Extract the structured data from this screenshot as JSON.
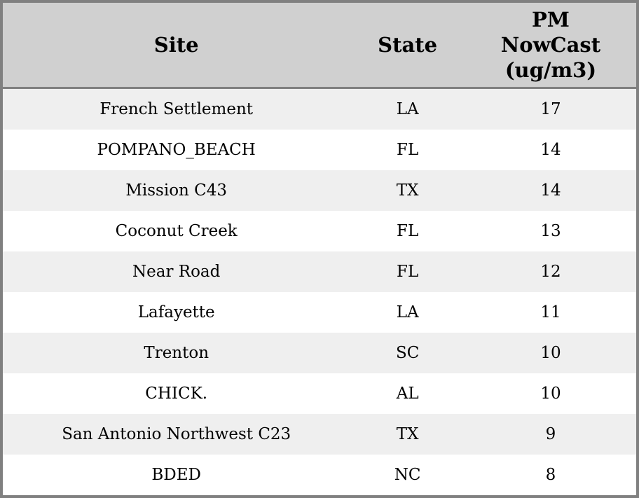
{
  "chart_data": {
    "type": "table",
    "title": "",
    "columns": [
      "Site",
      "State",
      "PM NowCast (ug/m3)"
    ],
    "columns_display": [
      "Site",
      "State",
      "PM\nNowCast\n(ug/m3)"
    ],
    "rows": [
      {
        "site": "French Settlement",
        "state": "LA",
        "pm_nowcast": 17
      },
      {
        "site": "POMPANO_BEACH",
        "state": "FL",
        "pm_nowcast": 14
      },
      {
        "site": "Mission C43",
        "state": "TX",
        "pm_nowcast": 14
      },
      {
        "site": "Coconut Creek",
        "state": "FL",
        "pm_nowcast": 13
      },
      {
        "site": "Near Road",
        "state": "FL",
        "pm_nowcast": 12
      },
      {
        "site": "Lafayette",
        "state": "LA",
        "pm_nowcast": 11
      },
      {
        "site": "Trenton",
        "state": "SC",
        "pm_nowcast": 10
      },
      {
        "site": "CHICK.",
        "state": "AL",
        "pm_nowcast": 10
      },
      {
        "site": "San Antonio Northwest C23",
        "state": "TX",
        "pm_nowcast": 9
      },
      {
        "site": "BDED",
        "state": "NC",
        "pm_nowcast": 8
      }
    ],
    "layout": {
      "grid": "horizontal-stripes-only",
      "row_striping": "odd-rows-shaded",
      "text_align": "center"
    }
  },
  "colors": {
    "border": "#808080",
    "header_bg": "#d0d0d0",
    "row_stripe": "#efefef",
    "row_plain": "#ffffff",
    "text": "#000000"
  }
}
